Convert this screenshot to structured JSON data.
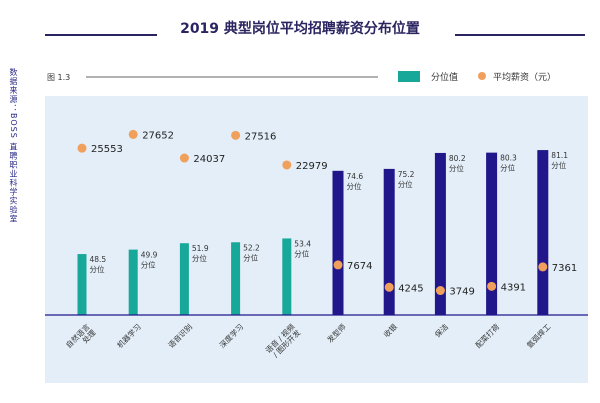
{
  "title": "2019 典型岗位平均招聘薪资分布位置",
  "figure_label": "图 1.3",
  "source": "数据来源：BOSS 直聘职业科学实验室",
  "colors": {
    "teal": "#17a89a",
    "navy": "#22178a",
    "orange": "#f0a05a",
    "plot_bg": "#e3eef8"
  },
  "chart_data": {
    "type": "bar",
    "title": "2019 典型岗位平均招聘薪资分布位置",
    "legend_position": "top-right",
    "categories": [
      "自然语言处理",
      "机器学习",
      "语音识别",
      "深度学习",
      "语音 / 视频 / 图形开发",
      "发型师",
      "收银",
      "保洁",
      "配菜打荷",
      "氩弧焊工"
    ],
    "series": [
      {
        "name": "分位值",
        "type": "bar",
        "values": [
          48.5,
          49.9,
          51.9,
          52.2,
          53.4,
          74.6,
          75.2,
          80.2,
          80.3,
          81.1
        ],
        "unit_label": "分位"
      },
      {
        "name": "平均薪资（元）",
        "type": "scatter",
        "values": [
          25553,
          27652,
          24037,
          27516,
          22979,
          7674,
          4245,
          3749,
          4391,
          7361
        ]
      }
    ]
  }
}
